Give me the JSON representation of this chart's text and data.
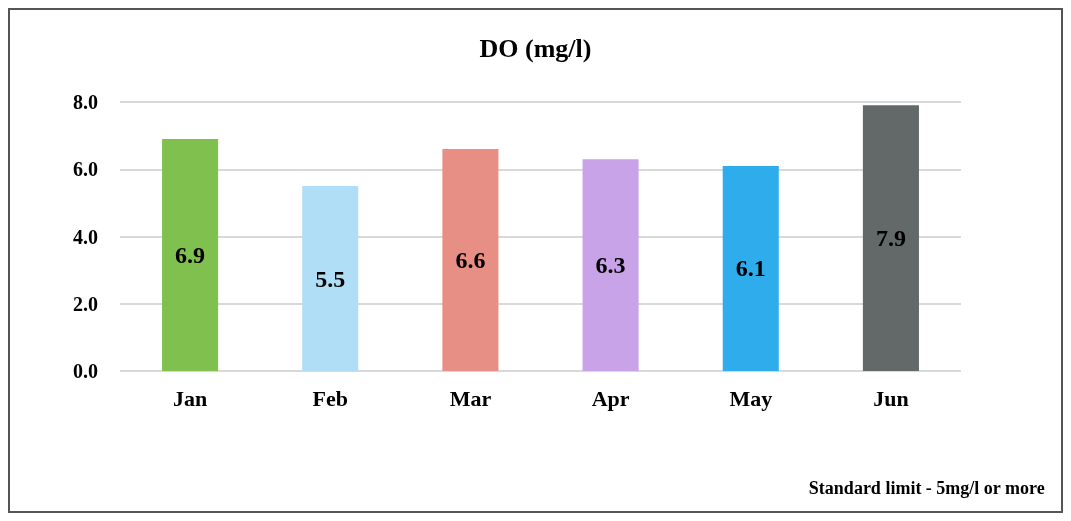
{
  "chart_data": {
    "type": "bar",
    "title": "DO (mg/l)",
    "categories": [
      "Jan",
      "Feb",
      "Mar",
      "Apr",
      "May",
      "Jun"
    ],
    "values": [
      6.9,
      5.5,
      6.6,
      6.3,
      6.1,
      7.9
    ],
    "colors": [
      "#7fc04f",
      "#b0def6",
      "#e88f85",
      "#c9a3e8",
      "#2eaceb",
      "#636869"
    ],
    "ylim": [
      0,
      8
    ],
    "yticks": [
      {
        "value": 0,
        "label": "0.0"
      },
      {
        "value": 2,
        "label": "2.0"
      },
      {
        "value": 4,
        "label": "4.0"
      },
      {
        "value": 6,
        "label": "6.0"
      },
      {
        "value": 8,
        "label": "8.0"
      }
    ],
    "grid": "y",
    "data_labels": true,
    "annotations": [
      "Standard limit - 5mg/l or more"
    ]
  }
}
